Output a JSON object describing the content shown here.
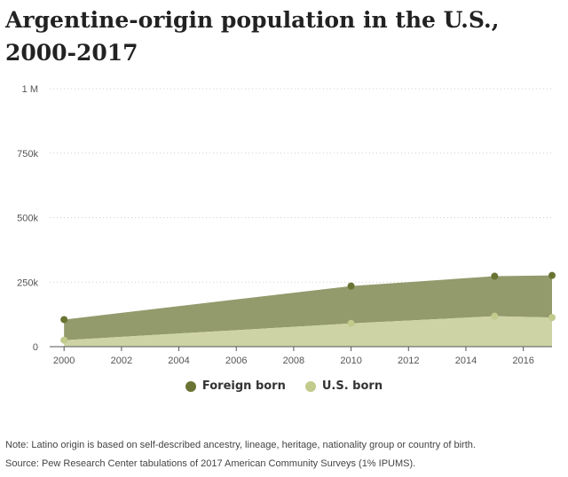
{
  "title": "Argentine-origin population in the U.S., 2000-2017",
  "chart_data": {
    "type": "area",
    "stacked": true,
    "title": "Argentine-origin population in the U.S., 2000-2017",
    "xlabel": "",
    "ylabel": "",
    "xlim": [
      1999.5,
      2017
    ],
    "ylim": [
      0,
      1000000
    ],
    "x_ticks": [
      2000,
      2002,
      2004,
      2006,
      2008,
      2010,
      2012,
      2014,
      2016
    ],
    "x_tick_labels": [
      "2000",
      "2002",
      "2004",
      "2006",
      "2008",
      "2010",
      "2012",
      "2014",
      "2016"
    ],
    "y_ticks": [
      0,
      250000,
      500000,
      750000,
      1000000
    ],
    "y_tick_labels": [
      "0",
      "250k",
      "500k",
      "750k",
      "1 M"
    ],
    "grid": true,
    "legend_position": "bottom-center",
    "x": [
      2000,
      2010,
      2015,
      2017
    ],
    "series": [
      {
        "name": "U.S. born",
        "color": "#cdd3a4",
        "values": [
          25000,
          90000,
          118000,
          113000
        ]
      },
      {
        "name": "Foreign born",
        "color": "#939a6c",
        "marker_color": "#6a7333",
        "values": [
          80000,
          145000,
          155000,
          163000
        ]
      }
    ],
    "totals": [
      105000,
      235000,
      273000,
      276000
    ]
  },
  "legend": {
    "foreign_label": "Foreign born",
    "foreign_color": "#6a7333",
    "us_label": "U.S. born",
    "us_color": "#c2ca8c"
  },
  "footnotes": {
    "note": "Note: Latino origin is based on self-described ancestry, lineage, heritage, nationality group or country of birth.",
    "source": "Source: Pew Research Center tabulations of 2017 American Community Surveys (1% IPUMS)."
  }
}
